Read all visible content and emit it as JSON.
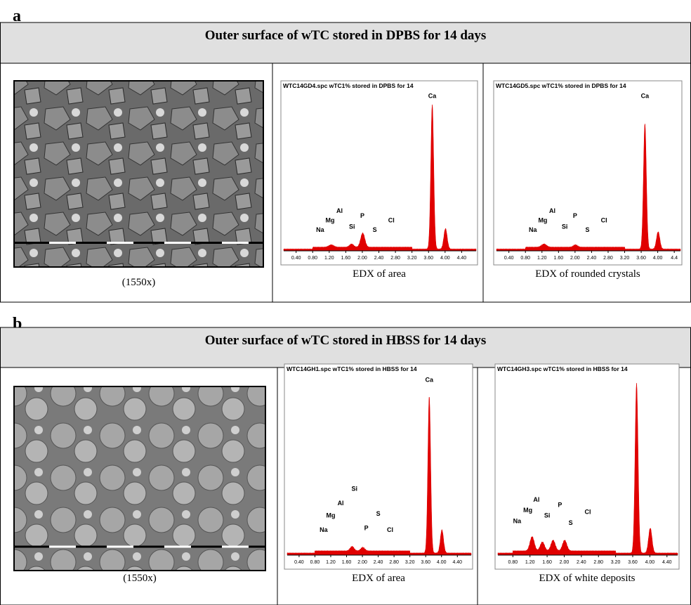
{
  "panels": [
    {
      "label": "a",
      "title": "Outer surface of wTC stored in DPBS for 14 days",
      "image_caption": "(1550x)",
      "spectra": [
        {
          "header": "WTC14GD4.spc wTC1% stored in DPBS for 14",
          "elements": [
            "Ca",
            "Al",
            "Mg",
            "Na",
            "Si",
            "P",
            "S",
            "Cl"
          ],
          "xticks": [
            "0.40",
            "0.80",
            "1.20",
            "1.60",
            "2.00",
            "2.40",
            "2.80",
            "3.20",
            "3.60",
            "4.00",
            "4.40"
          ],
          "caption": "EDX of area"
        },
        {
          "header": "WTC14GD5.spc wTC1% stored in DPBS for 14",
          "elements": [
            "Ca",
            "Al",
            "Mg",
            "Na",
            "Si",
            "P",
            "S",
            "Cl"
          ],
          "xticks": [
            "0.40",
            "0.80",
            "1.20",
            "1.60",
            "2.00",
            "2.40",
            "2.80",
            "3.20",
            "3.60",
            "4.00",
            "4.4"
          ],
          "caption": "EDX of rounded crystals"
        }
      ]
    },
    {
      "label": "b",
      "title": "Outer surface of wTC stored in HBSS for 14 days",
      "image_caption": "(1550x)",
      "spectra": [
        {
          "header": "WTC14GH1.spc wTC1% stored in HBSS for 14",
          "elements": [
            "Ca",
            "Si",
            "Al",
            "Mg",
            "Na",
            "P",
            "S",
            "Cl"
          ],
          "xticks": [
            "0.40",
            "0.80",
            "1.20",
            "1.60",
            "2.00",
            "2.40",
            "2.80",
            "3.20",
            "3.60",
            "4.00",
            "4.40"
          ],
          "caption": "EDX of area"
        },
        {
          "header": "WTC14GH3.spc wTC1% stored in HBSS for 14",
          "elements": [
            "Al",
            "Mg",
            "Na",
            "Si",
            "P",
            "S",
            "Cl"
          ],
          "xticks": [
            "0.80",
            "1.20",
            "1.60",
            "2.00",
            "2.40",
            "2.80",
            "3.20",
            "3.60",
            "4.00",
            "4.40"
          ],
          "caption": "EDX of white deposits"
        }
      ]
    }
  ]
}
